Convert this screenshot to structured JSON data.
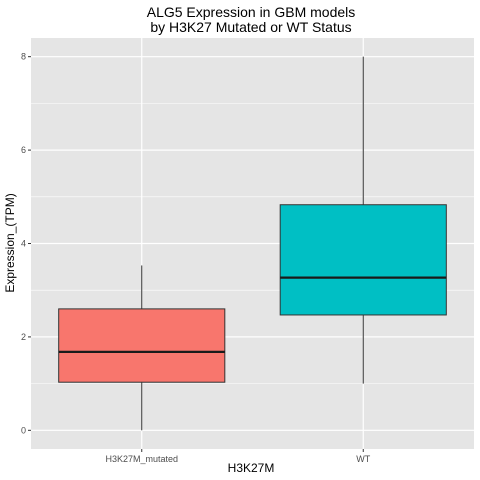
{
  "chart_data": {
    "type": "boxplot",
    "title_lines": [
      "ALG5 Expression in GBM models",
      "by H3K27 Mutated or WT Status"
    ],
    "xlabel": "H3K27M",
    "ylabel": "Expression_(TPM)",
    "categories": [
      "H3K27M_mutated",
      "WT"
    ],
    "boxes": [
      {
        "category": "H3K27M_mutated",
        "min": 0.0,
        "q1": 1.03,
        "median": 1.68,
        "q3": 2.6,
        "max": 3.53,
        "color": "#F8766D"
      },
      {
        "category": "WT",
        "min": 1.0,
        "q1": 2.47,
        "median": 3.27,
        "q3": 4.83,
        "max": 8.0,
        "color": "#00BFC4"
      }
    ],
    "yticks": [
      0,
      2,
      4,
      6,
      8
    ],
    "ylim": [
      -0.4,
      8.4
    ],
    "grid": true,
    "panel_background": "#E5E5E5",
    "grid_color": "#FFFFFF"
  }
}
